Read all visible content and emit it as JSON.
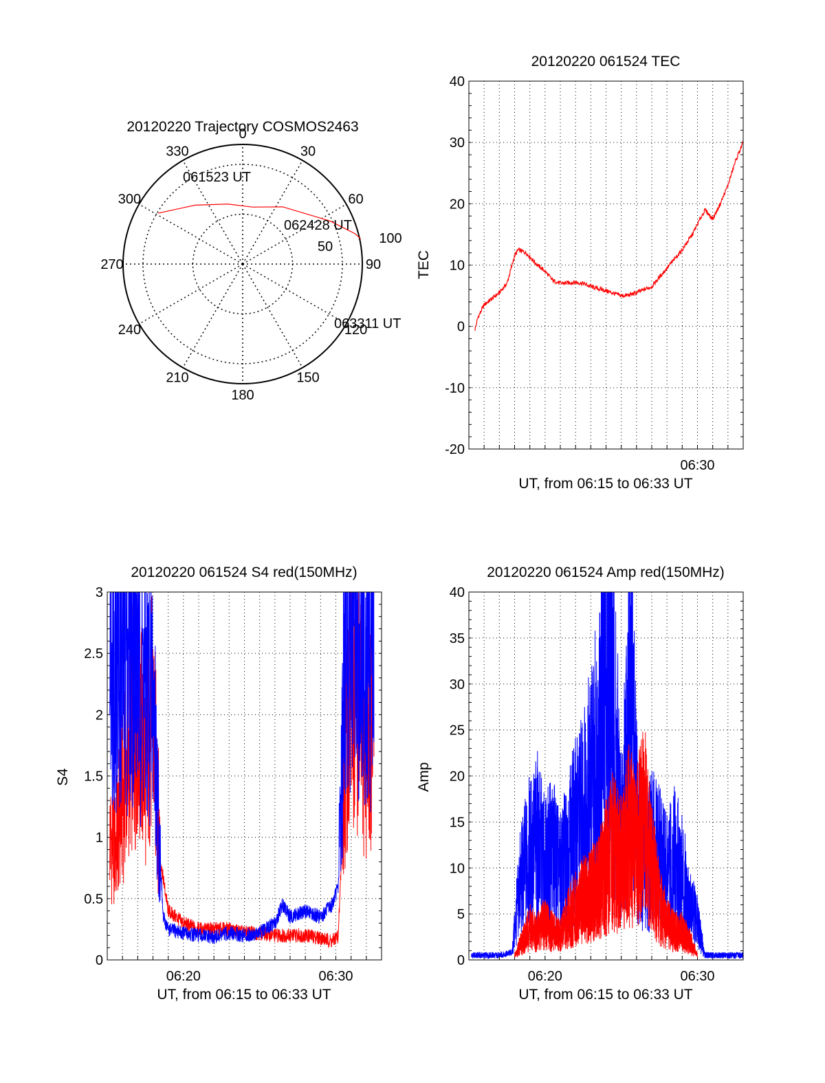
{
  "colors": {
    "red": "#ff0000",
    "blue": "#0000ff",
    "grid": "#000000",
    "background": "#ffffff"
  },
  "charts": {
    "trajectory": {
      "type": "polar",
      "title": "20120220 Trajectory COSMOS2463",
      "azimuth_labels": [
        "0",
        "30",
        "60",
        "90",
        "120",
        "150",
        "180",
        "210",
        "240",
        "270",
        "300",
        "330"
      ],
      "radial_labels": [
        "50",
        "100"
      ],
      "annotations": [
        "061523 UT",
        "062428 UT",
        "063311 UT"
      ]
    },
    "tec": {
      "type": "line",
      "title": "20120220 061524 TEC",
      "xlabel": "UT, from 06:15 to 06:33 UT",
      "ylabel": "TEC",
      "yticks": [
        "40",
        "30",
        "20",
        "10",
        "0",
        "-10",
        "-20"
      ],
      "xtick_labels": [
        "06:30"
      ]
    },
    "s4": {
      "type": "line",
      "title": "20120220 061524 S4 red(150MHz)",
      "xlabel": "UT, from 06:15 to 06:33 UT",
      "ylabel": "S4",
      "yticks": [
        "3",
        "2.5",
        "2",
        "1.5",
        "1",
        "0.5",
        "0"
      ],
      "xtick_labels": [
        "06:20",
        "06:30"
      ]
    },
    "amp": {
      "type": "line",
      "title": "20120220 061524 Amp red(150MHz)",
      "xlabel": "UT, from 06:15 to 06:33 UT",
      "ylabel": "Amp",
      "yticks": [
        "40",
        "35",
        "30",
        "25",
        "20",
        "15",
        "10",
        "5",
        "0"
      ],
      "xtick_labels": [
        "06:20",
        "06:30"
      ]
    }
  },
  "chart_data": [
    {
      "type": "scatter",
      "title": "20120220 Trajectory COSMOS2463",
      "coordinate_system": "polar (azimuth deg, zenith-distance deg)",
      "r_ticks": [
        50,
        100
      ],
      "series": [
        {
          "color": "#ff0000",
          "points": [
            [
              -59,
              99
            ],
            [
              -39,
              76
            ],
            [
              -14,
              62
            ],
            [
              10,
              58
            ],
            [
              35,
              70
            ],
            [
              59,
              90
            ],
            [
              64,
              98
            ],
            [
              70,
              107
            ],
            [
              75,
              117
            ],
            [
              78,
              121
            ]
          ]
        }
      ],
      "annotations": [
        {
          "text": "061523 UT",
          "az": -59,
          "r": 99
        },
        {
          "text": "062428 UT",
          "az": 59,
          "r": 90
        },
        {
          "text": "063311 UT",
          "az": 78,
          "r": 121
        }
      ]
    },
    {
      "type": "line",
      "title": "20120220 061524 TEC",
      "xlabel": "UT, from 06:15 to 06:33 UT",
      "ylabel": "TEC",
      "xlim": [
        "06:15",
        "06:33"
      ],
      "ylim": [
        -20,
        40
      ],
      "grid": true,
      "series": [
        {
          "color": "#ff0000",
          "x": [
            "06:15:24",
            "06:15:36",
            "06:16:00",
            "06:16:30",
            "06:17:00",
            "06:17:30",
            "06:18:00",
            "06:18:15",
            "06:18:45",
            "06:19:30",
            "06:20:00",
            "06:20:30",
            "06:21:00",
            "06:22:00",
            "06:22:30",
            "06:23:00",
            "06:24:00",
            "06:25:00",
            "06:25:30",
            "06:26:00",
            "06:27:00",
            "06:27:30",
            "06:28:00",
            "06:29:00",
            "06:29:40",
            "06:30:10",
            "06:30:30",
            "06:31:00",
            "06:31:30",
            "06:32:00",
            "06:32:30",
            "06:33:00"
          ],
          "y": [
            -0.5,
            1.5,
            3.5,
            4.5,
            5.5,
            7.0,
            11.5,
            12.5,
            12.0,
            10.0,
            9.0,
            7.5,
            7.0,
            7.2,
            7.0,
            6.5,
            5.8,
            5.0,
            5.1,
            5.5,
            6.5,
            8.0,
            9.5,
            12.5,
            15.0,
            17.5,
            19.0,
            17.5,
            20.0,
            23.0,
            27.0,
            30.0
          ]
        }
      ]
    },
    {
      "type": "line",
      "title": "20120220 061524 S4 red(150MHz)",
      "xlabel": "UT, from 06:15 to 06:33 UT",
      "ylabel": "S4",
      "xlim": [
        "06:15",
        "06:33"
      ],
      "ylim": [
        0,
        3
      ],
      "grid": true,
      "series": [
        {
          "color": "#ff0000",
          "x": [
            "06:15:10",
            "06:15:30",
            "06:16:00",
            "06:16:30",
            "06:17:00",
            "06:17:30",
            "06:18:00",
            "06:18:30",
            "06:19:00",
            "06:20:00",
            "06:21:00",
            "06:22:00",
            "06:23:00",
            "06:24:00",
            "06:25:00",
            "06:26:00",
            "06:27:00",
            "06:28:00",
            "06:29:00",
            "06:29:45",
            "06:30:10",
            "06:30:40",
            "06:31:00",
            "06:31:30",
            "06:32:00",
            "06:32:30"
          ],
          "y": [
            1.0,
            0.9,
            1.3,
            1.8,
            2.0,
            1.6,
            2.0,
            0.8,
            0.4,
            0.3,
            0.25,
            0.25,
            0.25,
            0.22,
            0.22,
            0.2,
            0.2,
            0.2,
            0.18,
            0.15,
            0.2,
            1.8,
            2.2,
            2.0,
            1.7,
            2.0
          ]
        },
        {
          "color": "#0000ff",
          "x": [
            "06:15:10",
            "06:15:30",
            "06:16:00",
            "06:16:30",
            "06:17:00",
            "06:17:30",
            "06:18:00",
            "06:18:20",
            "06:18:40",
            "06:19:00",
            "06:20:00",
            "06:21:00",
            "06:22:00",
            "06:23:00",
            "06:24:00",
            "06:25:00",
            "06:26:00",
            "06:26:30",
            "06:27:00",
            "06:28:00",
            "06:29:00",
            "06:29:45",
            "06:30:10",
            "06:30:40",
            "06:31:00",
            "06:31:30",
            "06:32:00",
            "06:32:30"
          ],
          "y": [
            2.8,
            2.6,
            2.4,
            2.7,
            2.5,
            2.2,
            2.2,
            1.2,
            0.35,
            0.25,
            0.22,
            0.2,
            0.18,
            0.22,
            0.2,
            0.22,
            0.3,
            0.45,
            0.35,
            0.4,
            0.35,
            0.45,
            0.6,
            2.8,
            2.6,
            2.7,
            2.5,
            2.8
          ]
        }
      ]
    },
    {
      "type": "line",
      "title": "20120220 061524 Amp red(150MHz)",
      "xlabel": "UT, from 06:15 to 06:33 UT",
      "ylabel": "Amp",
      "xlim": [
        "06:15",
        "06:33"
      ],
      "ylim": [
        0,
        40
      ],
      "grid": true,
      "series": [
        {
          "color": "#0000ff",
          "x": [
            "06:15:10",
            "06:16:00",
            "06:17:00",
            "06:17:50",
            "06:18:20",
            "06:18:50",
            "06:19:30",
            "06:20:00",
            "06:20:30",
            "06:21:00",
            "06:21:30",
            "06:22:00",
            "06:22:30",
            "06:23:00",
            "06:23:30",
            "06:24:00",
            "06:24:20",
            "06:24:40",
            "06:25:00",
            "06:25:20",
            "06:25:40",
            "06:26:00",
            "06:26:30",
            "06:27:00",
            "06:27:30",
            "06:28:00",
            "06:28:30",
            "06:29:00",
            "06:29:30",
            "06:30:00",
            "06:30:30",
            "06:31:00",
            "06:32:00",
            "06:33:00"
          ],
          "y": [
            0.5,
            0.5,
            0.5,
            0.8,
            8.0,
            11.0,
            13.0,
            10.0,
            12.0,
            9.0,
            12.0,
            14.0,
            16.0,
            19.0,
            22.0,
            30.0,
            34.0,
            22.0,
            13.0,
            22.0,
            30.0,
            15.0,
            10.0,
            12.0,
            11.0,
            9.0,
            11.0,
            9.0,
            6.0,
            4.0,
            0.5,
            0.5,
            0.5,
            0.5
          ]
        },
        {
          "color": "#ff0000",
          "x": [
            "06:18:00",
            "06:18:30",
            "06:19:00",
            "06:19:30",
            "06:20:00",
            "06:20:30",
            "06:21:00",
            "06:21:30",
            "06:22:00",
            "06:22:30",
            "06:23:00",
            "06:23:30",
            "06:24:00",
            "06:24:30",
            "06:25:00",
            "06:25:30",
            "06:26:00",
            "06:26:30",
            "06:27:00",
            "06:27:30",
            "06:28:00",
            "06:28:30",
            "06:29:00",
            "06:29:30",
            "06:30:00"
          ],
          "y": [
            0.5,
            2.0,
            3.5,
            3.0,
            4.0,
            3.0,
            2.5,
            4.5,
            5.5,
            6.5,
            7.0,
            8.0,
            10.0,
            12.0,
            10.0,
            14.0,
            12.0,
            15.0,
            10.0,
            6.0,
            4.0,
            3.0,
            3.0,
            2.0,
            0.5
          ]
        }
      ]
    }
  ]
}
